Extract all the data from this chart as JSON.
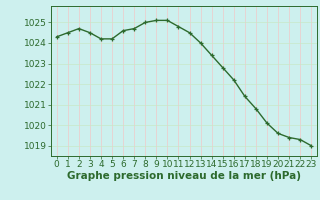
{
  "x": [
    0,
    1,
    2,
    3,
    4,
    5,
    6,
    7,
    8,
    9,
    10,
    11,
    12,
    13,
    14,
    15,
    16,
    17,
    18,
    19,
    20,
    21,
    22,
    23
  ],
  "y": [
    1024.3,
    1024.5,
    1024.7,
    1024.5,
    1024.2,
    1024.2,
    1024.6,
    1024.7,
    1025.0,
    1025.1,
    1025.1,
    1024.8,
    1024.5,
    1024.0,
    1023.4,
    1022.8,
    1022.2,
    1021.4,
    1020.8,
    1020.1,
    1019.6,
    1019.4,
    1019.3,
    1019.0
  ],
  "line_color": "#2d6a2d",
  "marker": "+",
  "bg_color": "#cdf0ee",
  "grid_color_h": "#c8e8c8",
  "grid_color_v": "#f0c8c8",
  "xlabel": "Graphe pression niveau de la mer (hPa)",
  "ylim": [
    1018.5,
    1025.8
  ],
  "yticks": [
    1019,
    1020,
    1021,
    1022,
    1023,
    1024,
    1025
  ],
  "xticks": [
    0,
    1,
    2,
    3,
    4,
    5,
    6,
    7,
    8,
    9,
    10,
    11,
    12,
    13,
    14,
    15,
    16,
    17,
    18,
    19,
    20,
    21,
    22,
    23
  ],
  "xlabel_fontsize": 7.5,
  "tick_fontsize": 6.5,
  "line_width": 1.0,
  "marker_size": 3.5,
  "xlim": [
    -0.5,
    23.5
  ]
}
